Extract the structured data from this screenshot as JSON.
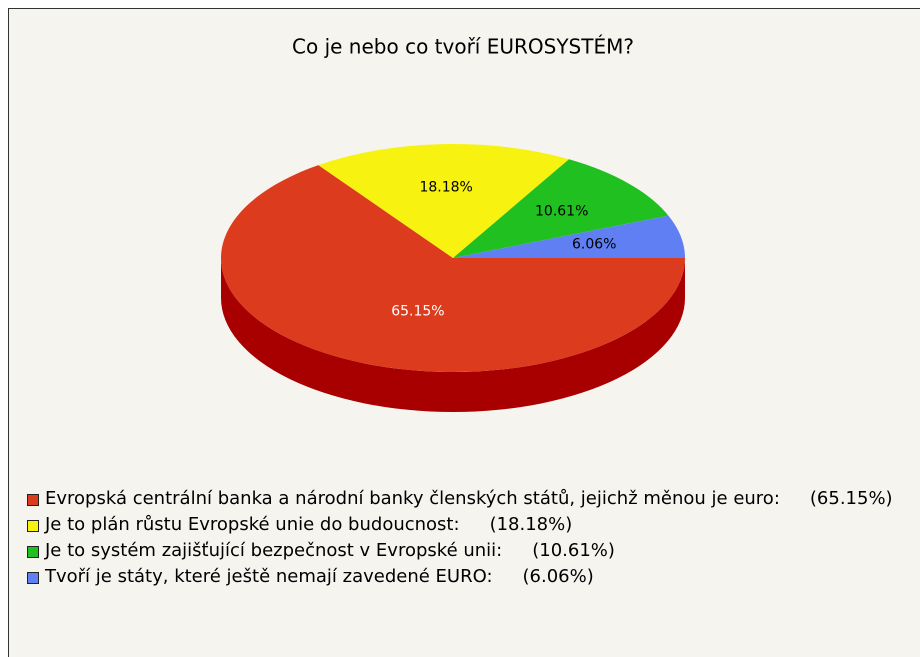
{
  "chart_data": {
    "type": "pie",
    "title": "Co je nebo co tvoří EUROSYSTÉM?",
    "categories": [
      "Evropská centrální banka a národní banky členských států, jejichž měnou je euro:",
      "Je to plán růstu Evropské unie do budoucnost:",
      "Je to systém zajišťující bezpečnost v Evropské unii:",
      "Tvoří je státy, které ještě nemají zavedené EURO:"
    ],
    "values": [
      65.15,
      18.18,
      10.61,
      6.06
    ],
    "value_labels": [
      "65.15%",
      "18.18%",
      "10.61%",
      "6.06%"
    ],
    "legend_value_labels": [
      "(65.15%)",
      "(18.18%)",
      "(10.61%)",
      "(6.06%)"
    ],
    "colors": [
      "#dc3b1e",
      "#f7f20f",
      "#1fc01f",
      "#5f7ff2"
    ],
    "side_colors": [
      "#a80000",
      "#b0a800",
      "#108010",
      "#3050b0"
    ],
    "label_colors": [
      "#ffffff",
      "#000000",
      "#000000",
      "#000000"
    ]
  }
}
